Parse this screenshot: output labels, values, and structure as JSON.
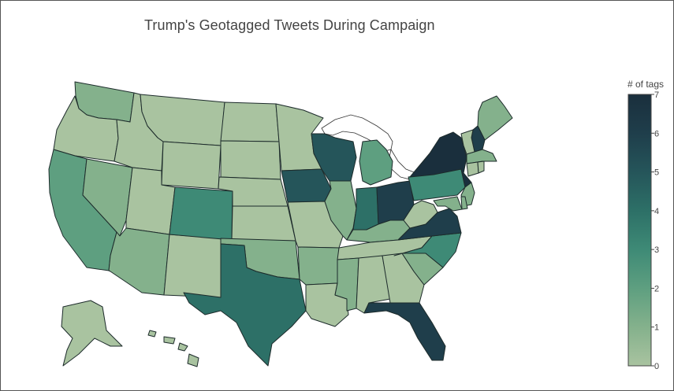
{
  "chart_data": {
    "type": "choropleth",
    "title": "Trump's Geotagged Tweets During Campaign",
    "colorbar": {
      "title": "# of tags",
      "range": [
        0,
        7
      ],
      "ticks": [
        "0",
        "1",
        "2",
        "3",
        "4",
        "5",
        "6",
        "7"
      ],
      "colorscale": [
        "#a9c3a0",
        "#84b18c",
        "#5e9f80",
        "#3e8a76",
        "#2d7067",
        "#25555a",
        "#1f3e4b",
        "#1a2f3d"
      ]
    },
    "locations": [
      "WA",
      "OR",
      "CA",
      "NV",
      "ID",
      "MT",
      "WY",
      "UT",
      "AZ",
      "NM",
      "CO",
      "ND",
      "SD",
      "NE",
      "KS",
      "OK",
      "TX",
      "MN",
      "IA",
      "MO",
      "AR",
      "LA",
      "WI",
      "IL",
      "MI",
      "IN",
      "OH",
      "KY",
      "TN",
      "MS",
      "AL",
      "GA",
      "FL",
      "SC",
      "NC",
      "VA",
      "WV",
      "PA",
      "NY",
      "ME",
      "NH",
      "VT",
      "MA",
      "CT",
      "RI",
      "NJ",
      "DE",
      "MD",
      "AK",
      "HI"
    ],
    "values": [
      1,
      0,
      2,
      1,
      0,
      0,
      0,
      0,
      1,
      0,
      3,
      0,
      0,
      0,
      0,
      1,
      4,
      0,
      5,
      0,
      1,
      0,
      5,
      1,
      2,
      4,
      6,
      1,
      0,
      1,
      0,
      0,
      6,
      1,
      3,
      6,
      0,
      3,
      7,
      1,
      6,
      0,
      1,
      0,
      0,
      1,
      1,
      1,
      0,
      0
    ]
  }
}
